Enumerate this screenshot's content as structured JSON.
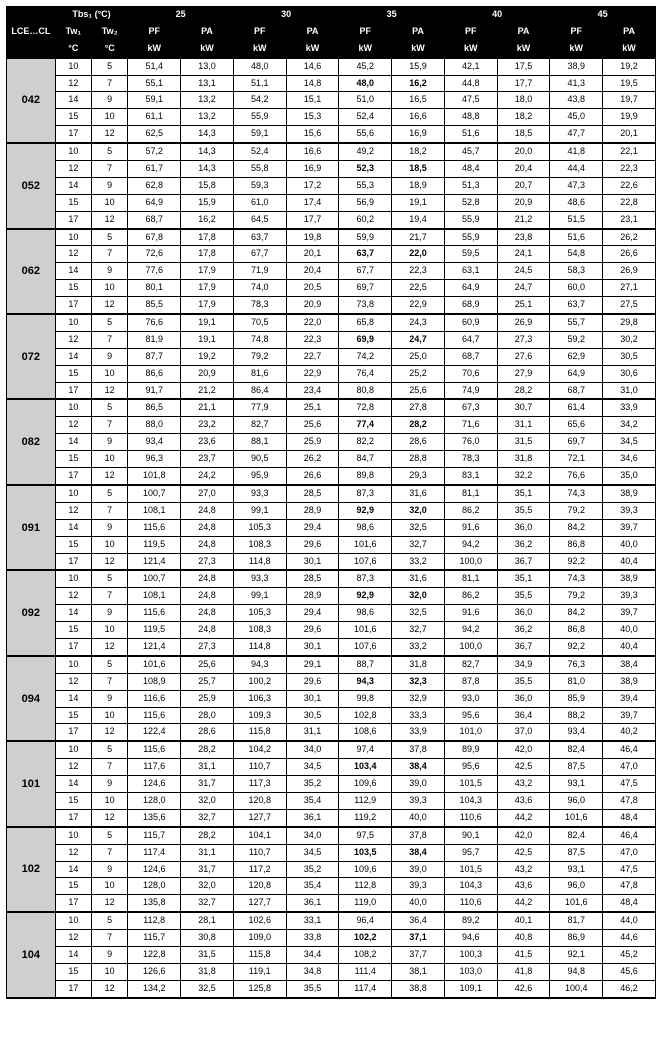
{
  "header": {
    "title": "LCE…CL",
    "tbs_label": "Tbs₁ (°C)",
    "tw1_label": "Tw₁",
    "tw2_label": "Tw₂",
    "tw_unit": "°C",
    "pf_label": "PF",
    "pa_label": "PA",
    "val_unit": "kW",
    "temp_groups": [
      "25",
      "30",
      "35",
      "40",
      "45"
    ]
  },
  "styling": {
    "header_bg": "#000000",
    "header_fg": "#ffffff",
    "model_bg": "#cfcfcf",
    "cell_bg": "#ffffff",
    "border_color": "#000000",
    "font_family": "Arial",
    "font_size_header": 9,
    "font_size_body": 9,
    "font_size_model": 11,
    "bold_highlight_row_index_within_group": 1,
    "bold_highlight_col_pair_index": 2
  },
  "tw_pairs": [
    {
      "tw1": "10",
      "tw2": "5"
    },
    {
      "tw1": "12",
      "tw2": "7"
    },
    {
      "tw1": "14",
      "tw2": "9"
    },
    {
      "tw1": "15",
      "tw2": "10"
    },
    {
      "tw1": "17",
      "tw2": "12"
    }
  ],
  "models": [
    {
      "code": "042",
      "rows": [
        [
          "51,4",
          "13,0",
          "48,0",
          "14,6",
          "45,2",
          "15,9",
          "42,1",
          "17,5",
          "38,9",
          "19,2"
        ],
        [
          "55,1",
          "13,1",
          "51,1",
          "14,8",
          "48,0",
          "16,2",
          "44,8",
          "17,7",
          "41,3",
          "19,5"
        ],
        [
          "59,1",
          "13,2",
          "54,2",
          "15,1",
          "51,0",
          "16,5",
          "47,5",
          "18,0",
          "43,8",
          "19,7"
        ],
        [
          "61,1",
          "13,2",
          "55,9",
          "15,3",
          "52,4",
          "16,6",
          "48,8",
          "18,2",
          "45,0",
          "19,9"
        ],
        [
          "62,5",
          "14,3",
          "59,1",
          "15,6",
          "55,6",
          "16,9",
          "51,6",
          "18,5",
          "47,7",
          "20,1"
        ]
      ]
    },
    {
      "code": "052",
      "rows": [
        [
          "57,2",
          "14,3",
          "52,4",
          "16,6",
          "49,2",
          "18,2",
          "45,7",
          "20,0",
          "41,8",
          "22,1"
        ],
        [
          "61,7",
          "14,3",
          "55,8",
          "16,9",
          "52,3",
          "18,5",
          "48,4",
          "20,4",
          "44,4",
          "22,3"
        ],
        [
          "62,8",
          "15,8",
          "59,3",
          "17,2",
          "55,3",
          "18,9",
          "51,3",
          "20,7",
          "47,3",
          "22,6"
        ],
        [
          "64,9",
          "15,9",
          "61,0",
          "17,4",
          "56,9",
          "19,1",
          "52,8",
          "20,9",
          "48,6",
          "22,8"
        ],
        [
          "68,7",
          "16,2",
          "64,5",
          "17,7",
          "60,2",
          "19,4",
          "55,9",
          "21,2",
          "51,5",
          "23,1"
        ]
      ]
    },
    {
      "code": "062",
      "rows": [
        [
          "67,8",
          "17,8",
          "63,7",
          "19,8",
          "59,9",
          "21,7",
          "55,9",
          "23,8",
          "51,6",
          "26,2"
        ],
        [
          "72,6",
          "17,8",
          "67,7",
          "20,1",
          "63,7",
          "22,0",
          "59,5",
          "24,1",
          "54,8",
          "26,6"
        ],
        [
          "77,6",
          "17,9",
          "71,9",
          "20,4",
          "67,7",
          "22,3",
          "63,1",
          "24,5",
          "58,3",
          "26,9"
        ],
        [
          "80,1",
          "17,9",
          "74,0",
          "20,5",
          "69,7",
          "22,5",
          "64,9",
          "24,7",
          "60,0",
          "27,1"
        ],
        [
          "85,5",
          "17,9",
          "78,3",
          "20,9",
          "73,8",
          "22,9",
          "68,9",
          "25,1",
          "63,7",
          "27,5"
        ]
      ]
    },
    {
      "code": "072",
      "rows": [
        [
          "76,6",
          "19,1",
          "70,5",
          "22,0",
          "65,8",
          "24,3",
          "60,9",
          "26,9",
          "55,7",
          "29,8"
        ],
        [
          "81,9",
          "19,1",
          "74,8",
          "22,3",
          "69,9",
          "24,7",
          "64,7",
          "27,3",
          "59,2",
          "30,2"
        ],
        [
          "87,7",
          "19,2",
          "79,2",
          "22,7",
          "74,2",
          "25,0",
          "68,7",
          "27,6",
          "62,9",
          "30,5"
        ],
        [
          "86,6",
          "20,9",
          "81,6",
          "22,9",
          "76,4",
          "25,2",
          "70,6",
          "27,9",
          "64,9",
          "30,6"
        ],
        [
          "91,7",
          "21,2",
          "86,4",
          "23,4",
          "80,8",
          "25,6",
          "74,9",
          "28,2",
          "68,7",
          "31,0"
        ]
      ]
    },
    {
      "code": "082",
      "rows": [
        [
          "86,5",
          "21,1",
          "77,9",
          "25,1",
          "72,8",
          "27,8",
          "67,3",
          "30,7",
          "61,4",
          "33,9"
        ],
        [
          "88,0",
          "23,2",
          "82,7",
          "25,6",
          "77,4",
          "28,2",
          "71,6",
          "31,1",
          "65,6",
          "34,2"
        ],
        [
          "93,4",
          "23,6",
          "88,1",
          "25,9",
          "82,2",
          "28,6",
          "76,0",
          "31,5",
          "69,7",
          "34,5"
        ],
        [
          "96,3",
          "23,7",
          "90,5",
          "26,2",
          "84,7",
          "28,8",
          "78,3",
          "31,8",
          "72,1",
          "34,6"
        ],
        [
          "101,8",
          "24,2",
          "95,9",
          "26,6",
          "89,8",
          "29,3",
          "83,1",
          "32,2",
          "76,6",
          "35,0"
        ]
      ]
    },
    {
      "code": "091",
      "rows": [
        [
          "100,7",
          "27,0",
          "93,3",
          "28,5",
          "87,3",
          "31,6",
          "81,1",
          "35,1",
          "74,3",
          "38,9"
        ],
        [
          "108,1",
          "24,8",
          "99,1",
          "28,9",
          "92,9",
          "32,0",
          "86,2",
          "35,5",
          "79,2",
          "39,3"
        ],
        [
          "115,6",
          "24,8",
          "105,3",
          "29,4",
          "98,6",
          "32,5",
          "91,6",
          "36,0",
          "84,2",
          "39,7"
        ],
        [
          "119,5",
          "24,8",
          "108,3",
          "29,6",
          "101,6",
          "32,7",
          "94,2",
          "36,2",
          "86,8",
          "40,0"
        ],
        [
          "121,4",
          "27,3",
          "114,8",
          "30,1",
          "107,6",
          "33,2",
          "100,0",
          "36,7",
          "92,2",
          "40,4"
        ]
      ]
    },
    {
      "code": "092",
      "rows": [
        [
          "100,7",
          "24,8",
          "93,3",
          "28,5",
          "87,3",
          "31,6",
          "81,1",
          "35,1",
          "74,3",
          "38,9"
        ],
        [
          "108,1",
          "24,8",
          "99,1",
          "28,9",
          "92,9",
          "32,0",
          "86,2",
          "35,5",
          "79,2",
          "39,3"
        ],
        [
          "115,6",
          "24,8",
          "105,3",
          "29,4",
          "98,6",
          "32,5",
          "91,6",
          "36,0",
          "84,2",
          "39,7"
        ],
        [
          "119,5",
          "24,8",
          "108,3",
          "29,6",
          "101,6",
          "32,7",
          "94,2",
          "36,2",
          "86,8",
          "40,0"
        ],
        [
          "121,4",
          "27,3",
          "114,8",
          "30,1",
          "107,6",
          "33,2",
          "100,0",
          "36,7",
          "92,2",
          "40,4"
        ]
      ]
    },
    {
      "code": "094",
      "rows": [
        [
          "101,6",
          "25,6",
          "94,3",
          "29,1",
          "88,7",
          "31,8",
          "82,7",
          "34,9",
          "76,3",
          "38,4"
        ],
        [
          "108,9",
          "25,7",
          "100,2",
          "29,6",
          "94,3",
          "32,3",
          "87,8",
          "35,5",
          "81,0",
          "38,9"
        ],
        [
          "116,6",
          "25,9",
          "106,3",
          "30,1",
          "99,8",
          "32,9",
          "93,0",
          "36,0",
          "85,9",
          "39,4"
        ],
        [
          "115,6",
          "28,0",
          "109,3",
          "30,5",
          "102,8",
          "33,3",
          "95,6",
          "36,4",
          "88,2",
          "39,7"
        ],
        [
          "122,4",
          "28,6",
          "115,8",
          "31,1",
          "108,6",
          "33,9",
          "101,0",
          "37,0",
          "93,4",
          "40,2"
        ]
      ]
    },
    {
      "code": "101",
      "rows": [
        [
          "115,6",
          "28,2",
          "104,2",
          "34,0",
          "97,4",
          "37,8",
          "89,9",
          "42,0",
          "82,4",
          "46,4"
        ],
        [
          "117,6",
          "31,1",
          "110,7",
          "34,5",
          "103,4",
          "38,4",
          "95,6",
          "42,5",
          "87,5",
          "47,0"
        ],
        [
          "124,6",
          "31,7",
          "117,3",
          "35,2",
          "109,6",
          "39,0",
          "101,5",
          "43,2",
          "93,1",
          "47,5"
        ],
        [
          "128,0",
          "32,0",
          "120,8",
          "35,4",
          "112,9",
          "39,3",
          "104,3",
          "43,6",
          "96,0",
          "47,8"
        ],
        [
          "135,6",
          "32,7",
          "127,7",
          "36,1",
          "119,2",
          "40,0",
          "110,6",
          "44,2",
          "101,6",
          "48,4"
        ]
      ]
    },
    {
      "code": "102",
      "rows": [
        [
          "115,7",
          "28,2",
          "104,1",
          "34,0",
          "97,5",
          "37,8",
          "90,1",
          "42,0",
          "82,4",
          "46,4"
        ],
        [
          "117,4",
          "31,1",
          "110,7",
          "34,5",
          "103,5",
          "38,4",
          "95,7",
          "42,5",
          "87,5",
          "47,0"
        ],
        [
          "124,6",
          "31,7",
          "117,2",
          "35,2",
          "109,6",
          "39,0",
          "101,5",
          "43,2",
          "93,1",
          "47,5"
        ],
        [
          "128,0",
          "32,0",
          "120,8",
          "35,4",
          "112,8",
          "39,3",
          "104,3",
          "43,6",
          "96,0",
          "47,8"
        ],
        [
          "135,8",
          "32,7",
          "127,7",
          "36,1",
          "119,0",
          "40,0",
          "110,6",
          "44,2",
          "101,6",
          "48,4"
        ]
      ]
    },
    {
      "code": "104",
      "rows": [
        [
          "112,8",
          "28,1",
          "102,6",
          "33,1",
          "96,4",
          "36,4",
          "89,2",
          "40,1",
          "81,7",
          "44,0"
        ],
        [
          "115,7",
          "30,8",
          "109,0",
          "33,8",
          "102,2",
          "37,1",
          "94,6",
          "40,8",
          "86,9",
          "44,6"
        ],
        [
          "122,8",
          "31,5",
          "115,8",
          "34,4",
          "108,2",
          "37,7",
          "100,3",
          "41,5",
          "92,1",
          "45,2"
        ],
        [
          "126,6",
          "31,8",
          "119,1",
          "34,8",
          "111,4",
          "38,1",
          "103,0",
          "41,8",
          "94,8",
          "45,6"
        ],
        [
          "134,2",
          "32,5",
          "125,8",
          "35,5",
          "117,4",
          "38,8",
          "109,1",
          "42,6",
          "100,4",
          "46,2"
        ]
      ]
    }
  ]
}
